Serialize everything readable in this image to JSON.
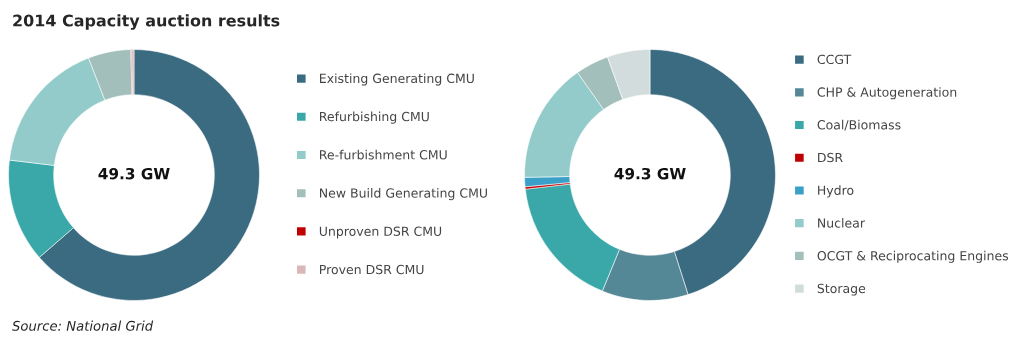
{
  "chart_data": [
    {
      "type": "donut",
      "title": "2014 Capacity auction results",
      "categories": [
        "Existing Generating CMU",
        "Refurbishing CMU",
        "Re-furbishment CMU",
        "New Build Generating CMU",
        "Unproven DSR CMU",
        "Proven DSR CMU"
      ],
      "values": [
        63.6,
        13.3,
        17.2,
        5.5,
        0.1,
        0.3
      ],
      "colors": [
        "#3a6b80",
        "#3aa8a8",
        "#92cbc9",
        "#a3bfbb",
        "#c00000",
        "#d8b8b8"
      ],
      "legend": "right",
      "annotations": [
        "49.3 GW",
        "Source: National Grid"
      ]
    },
    {
      "type": "donut",
      "categories": [
        "CCGT",
        "CHP & Autogeneration",
        "Coal/Biomass",
        "DSR",
        "Hydro",
        "Nuclear",
        "OCGT & Reciprocating Engines",
        "Storage"
      ],
      "values": [
        45.1,
        11.1,
        17.0,
        0.3,
        1.2,
        15.5,
        4.3,
        5.5
      ],
      "colors": [
        "#3a6b80",
        "#558896",
        "#3aa8a8",
        "#c00000",
        "#3aa0c8",
        "#92cbc9",
        "#a3bfbb",
        "#d3dcdc"
      ],
      "legend": "right",
      "annotations": [
        "49.3 GW"
      ]
    }
  ]
}
